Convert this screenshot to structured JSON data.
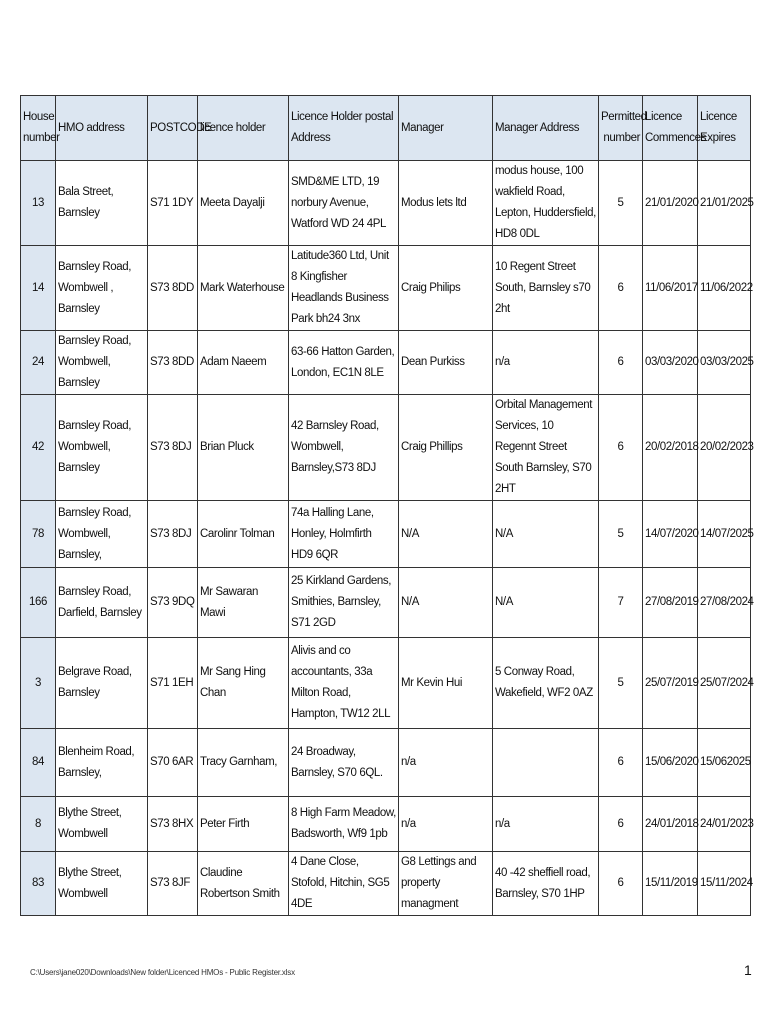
{
  "headers": [
    "House number",
    "HMO address",
    "POSTCODE",
    "licence holder",
    "Licence Holder postal Address",
    "Manager",
    "Manager Address",
    "Permitted number",
    "Licence Commences",
    "Licence Expires"
  ],
  "rows": [
    {
      "house": "13",
      "address": "Bala Street, Barnsley",
      "postcode": "S71 1DY",
      "holder": "Meeta Dayalji",
      "holder_address": "SMD&ME LTD, 19 norbury Avenue, Watford WD 24 4PL",
      "manager": "Modus lets ltd",
      "manager_address": "modus house,  100 wakfield Road, Lepton, Huddersfield, HD8 0DL",
      "permitted": "5",
      "commences": "21/01/2020",
      "expires": "21/01/2025"
    },
    {
      "house": "14",
      "address": "Barnsley Road, Wombwell , Barnsley",
      "postcode": "S73 8DD",
      "holder": "Mark Waterhouse",
      "holder_address": "Latitude360 Ltd, Unit 8 Kingfisher Headlands Business Park bh24 3nx",
      "manager": "Craig Philips",
      "manager_address": "10 Regent Street South, Barnsley s70 2ht",
      "permitted": "6",
      "commences": "11/06/2017",
      "expires": "11/06/2022"
    },
    {
      "house": "24",
      "address": "Barnsley Road, Wombwell, Barnsley",
      "postcode": "S73 8DD",
      "holder": "Adam Naeem",
      "holder_address": "63-66 Hatton Garden, London, EC1N 8LE",
      "manager": "Dean Purkiss",
      "manager_address": "n/a",
      "permitted": "6",
      "commences": "03/03/2020",
      "expires": "03/03/2025"
    },
    {
      "house": "42",
      "address": "Barnsley Road, Wombwell, Barnsley",
      "postcode": "S73 8DJ",
      "holder": "Brian Pluck",
      "holder_address": "42 Barnsley Road, Wombwell, Barnsley,S73 8DJ",
      "manager": "Craig Phillips",
      "manager_address": "Orbital Management Services, 10 Regennt Street South Barnsley, S70 2HT",
      "permitted": "6",
      "commences": "20/02/2018",
      "expires": "20/02/2023"
    },
    {
      "house": "78",
      "address": "Barnsley Road, Wombwell, Barnsley,",
      "postcode": "S73 8DJ",
      "holder": "Carolinr Tolman",
      "holder_address": "74a Halling Lane, Honley, Holmfirth HD9 6QR",
      "manager": "N/A",
      "manager_address": "N/A",
      "permitted": "5",
      "commences": "14/07/2020",
      "expires": "14/07/2025"
    },
    {
      "house": "166",
      "address": "Barnsley Road, Darfield, Barnsley",
      "postcode": "S73 9DQ",
      "holder": "Mr Sawaran Mawi",
      "holder_address": "25 Kirkland Gardens, Smithies, Barnsley, S71 2GD",
      "manager": "N/A",
      "manager_address": "N/A",
      "permitted": "7",
      "commences": "27/08/2019",
      "expires": "27/08/2024"
    },
    {
      "house": "3",
      "address": "Belgrave Road, Barnsley",
      "postcode": "S71 1EH",
      "holder": "Mr Sang Hing Chan",
      "holder_address": "Alivis and co accountants, 33a Milton Road, Hampton, TW12 2LL",
      "manager": "Mr Kevin Hui",
      "manager_address": "5 Conway Road, Wakefield, WF2 0AZ",
      "permitted": "5",
      "commences": "25/07/2019",
      "expires": "25/07/2024"
    },
    {
      "house": "84",
      "address": "Blenheim Road, Barnsley,",
      "postcode": "S70 6AR",
      "holder": "Tracy Garnham,",
      "holder_address": "24 Broadway, Barnsley, S70 6QL.",
      "manager": "n/a",
      "manager_address": "",
      "permitted": "6",
      "commences": "15/06/2020",
      "expires": "15/062025"
    },
    {
      "house": "8",
      "address": "Blythe Street, Wombwell",
      "postcode": "S73 8HX",
      "holder": "Peter Firth",
      "holder_address": "8 High Farm Meadow, Badsworth, Wf9 1pb",
      "manager": "n/a",
      "manager_address": "n/a",
      "permitted": "6",
      "commences": "24/01/2018",
      "expires": "24/01/2023"
    },
    {
      "house": "83",
      "address": "Blythe Street, Wombwell",
      "postcode": "S73 8JF",
      "holder": "Claudine Robertson Smith",
      "holder_address": "4 Dane Close, Stofold, Hitchin, SG5 4DE",
      "manager": "G8 Lettings and property managment",
      "manager_address": "40 -42 sheffiell road, Barnsley, S70 1HP",
      "permitted": "6",
      "commences": "15/11/2019",
      "expires": "15/11/2024"
    }
  ],
  "footer": {
    "path": "C:\\Users\\jane020\\Downloads\\New folder\\Licenced HMOs - Public Register.xlsx",
    "page_number": "1"
  },
  "colors": {
    "header_bg": "#dce6f1",
    "border": "#333333"
  }
}
